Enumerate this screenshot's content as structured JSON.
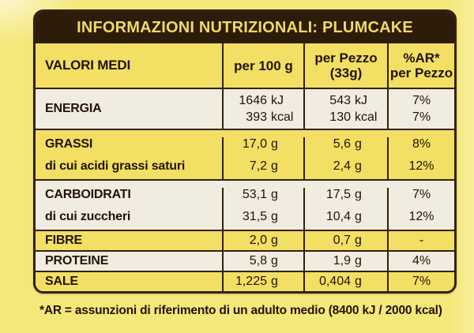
{
  "title": "INFORMAZIONI NUTRIZIONALI: PLUMCAKE",
  "footnote": "*AR = assunzioni di riferimento di un adulto medio (8400 kJ / 2000 kcal)",
  "colors": {
    "background": "#f5e87b",
    "row_yellow": "#f2df64",
    "row_cream": "#f0ecdf",
    "band_dark_brown": "#2e1c0b",
    "band_text_yellow": "#efda66",
    "border": "#33210f",
    "text": "#221307"
  },
  "table": {
    "header": {
      "col1": "VALORI MEDI",
      "col2": "per 100 g",
      "col3_line1": "per Pezzo",
      "col3_line2": "(33g)",
      "col4_line1": "%AR*",
      "col4_line2": "per Pezzo"
    },
    "energia": {
      "label": "ENERGIA",
      "per100": [
        {
          "num": "1646",
          "unit": "kJ"
        },
        {
          "num": "393",
          "unit": "kcal"
        }
      ],
      "pezzo": [
        {
          "num": "543",
          "unit": "kJ"
        },
        {
          "num": "130",
          "unit": "kcal"
        }
      ],
      "ar": [
        "7%",
        "7%"
      ]
    },
    "rows": [
      {
        "label": "GRASSI",
        "per100": {
          "num": "17,0",
          "unit": "g"
        },
        "pezzo": {
          "num": "5,6",
          "unit": "g"
        },
        "ar": "8%"
      },
      {
        "label": "di cui acidi grassi saturi",
        "per100": {
          "num": "7,2",
          "unit": "g"
        },
        "pezzo": {
          "num": "2,4",
          "unit": "g"
        },
        "ar": "12%"
      },
      {
        "label": "CARBOIDRATI",
        "per100": {
          "num": "53,1",
          "unit": "g"
        },
        "pezzo": {
          "num": "17,5",
          "unit": "g"
        },
        "ar": "7%"
      },
      {
        "label": "di cui zuccheri",
        "per100": {
          "num": "31,5",
          "unit": "g"
        },
        "pezzo": {
          "num": "10,4",
          "unit": "g"
        },
        "ar": "12%"
      },
      {
        "label": "FIBRE",
        "per100": {
          "num": "2,0",
          "unit": "g"
        },
        "pezzo": {
          "num": "0,7",
          "unit": "g"
        },
        "ar": "-"
      },
      {
        "label": "PROTEINE",
        "per100": {
          "num": "5,8",
          "unit": "g"
        },
        "pezzo": {
          "num": "1,9",
          "unit": "g"
        },
        "ar": "4%"
      },
      {
        "label": "SALE",
        "per100": {
          "num": "1,225",
          "unit": "g"
        },
        "pezzo": {
          "num": "0,404",
          "unit": "g"
        },
        "ar": "7%"
      }
    ]
  }
}
